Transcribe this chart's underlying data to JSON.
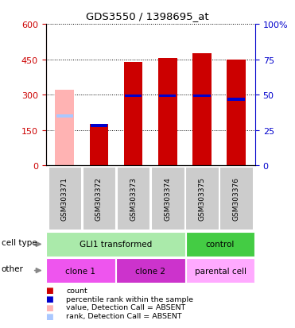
{
  "title": "GDS3550 / 1398695_at",
  "samples": [
    "GSM303371",
    "GSM303372",
    "GSM303373",
    "GSM303374",
    "GSM303375",
    "GSM303376"
  ],
  "counts": [
    320,
    175,
    440,
    455,
    475,
    450
  ],
  "percentile_ranks_left_scale": [
    210,
    168,
    295,
    295,
    295,
    280
  ],
  "absent_detection": [
    true,
    false,
    false,
    false,
    false,
    false
  ],
  "ylim_left": [
    0,
    600
  ],
  "yticks_left": [
    0,
    150,
    300,
    450,
    600
  ],
  "yticks_right": [
    0,
    25,
    50,
    75,
    100
  ],
  "ytick_labels_right": [
    "0",
    "25",
    "50",
    "75",
    "100%"
  ],
  "bar_color_present": "#cc0000",
  "bar_color_absent": "#ffb3b3",
  "rank_color_present": "#0000cc",
  "rank_color_absent": "#aac8ff",
  "cell_type_row": [
    {
      "label": "GLI1 transformed",
      "span": [
        0,
        4
      ],
      "color": "#aaeaaa"
    },
    {
      "label": "control",
      "span": [
        4,
        6
      ],
      "color": "#44cc44"
    }
  ],
  "other_row": [
    {
      "label": "clone 1",
      "span": [
        0,
        2
      ],
      "color": "#ee55ee"
    },
    {
      "label": "clone 2",
      "span": [
        2,
        4
      ],
      "color": "#cc33cc"
    },
    {
      "label": "parental cell",
      "span": [
        4,
        6
      ],
      "color": "#ffaaff"
    }
  ],
  "legend_items": [
    {
      "label": "count",
      "color": "#cc0000"
    },
    {
      "label": "percentile rank within the sample",
      "color": "#0000cc"
    },
    {
      "label": "value, Detection Call = ABSENT",
      "color": "#ffb3b3"
    },
    {
      "label": "rank, Detection Call = ABSENT",
      "color": "#aac8ff"
    }
  ],
  "cell_type_label": "cell type",
  "other_label": "other",
  "left_label_color": "#cc0000",
  "right_label_color": "#0000cc",
  "background_color": "#ffffff",
  "sample_bg_color": "#cccccc"
}
